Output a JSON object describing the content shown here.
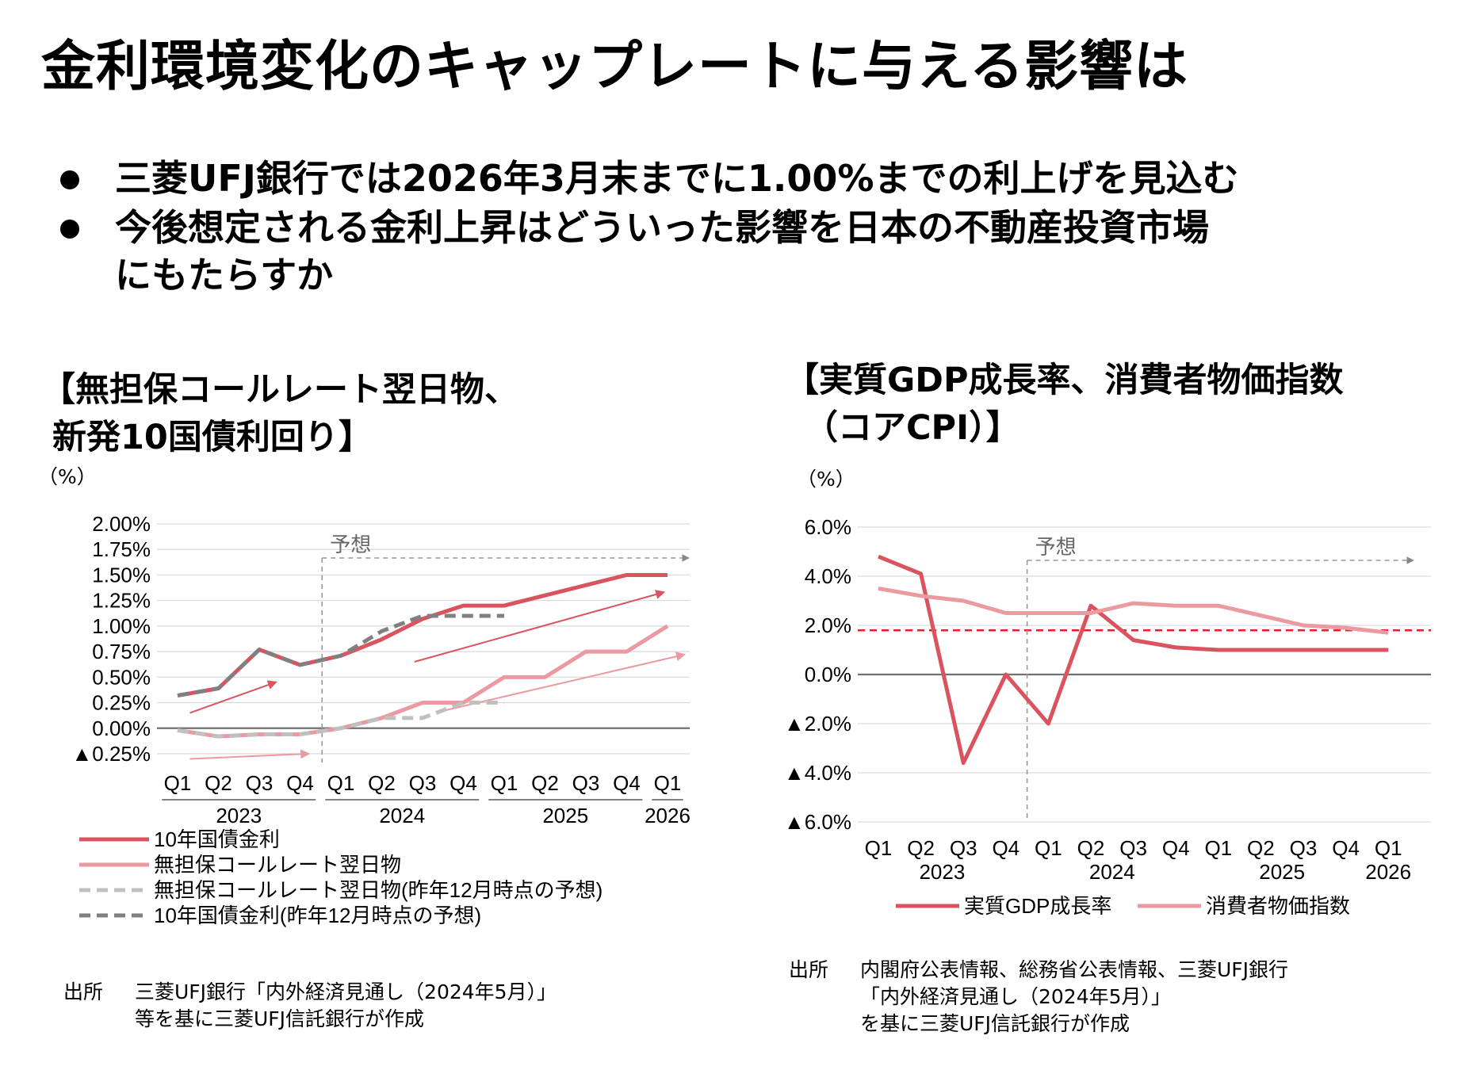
{
  "page": {
    "title": "金利環境変化のキャップレートに与える影響は",
    "bullets": [
      "三菱UFJ銀行では2026年3月末までに1.00%までの利上げを見込む",
      "今後想定される金利上昇はどういった影響を日本の不動産投資市場",
      "にもたらすか"
    ]
  },
  "left_panel": {
    "title_line1": "【無担保コールレート翌日物、",
    "title_line2": "新発10国債利回り】",
    "unit": "（%）",
    "source_label": "出所",
    "source_line1": "三菱UFJ銀行「内外経済見通し（2024年5月）」",
    "source_line2": "等を基に三菱UFJ信託銀行が作成"
  },
  "right_panel": {
    "title_line1": "【実質GDP成長率、消費者物価指数",
    "title_line2": "（コアCPI）】",
    "unit": "（%）",
    "source_label": "出所",
    "source_line1": "内閣府公表情報、総務省公表情報、三菱UFJ銀行",
    "source_line2": "「内外経済見通し（2024年5月）」",
    "source_line3": "を基に三菱UFJ信託銀行が作成"
  },
  "colors": {
    "dark_red": "#d9545e",
    "light_red": "#ea9aa0",
    "light_gray": "#c0c0c0",
    "dark_gray": "#808080",
    "dashed_red": "#e0202a",
    "axis": "#707070",
    "grid": "#d9d9d9"
  },
  "chart_data": [
    {
      "type": "line",
      "title": "無担保コールレート翌日物、新発10国債利回り",
      "ylabel": "（%）",
      "ylim": [
        -0.25,
        2.0
      ],
      "y_ticks": [
        2.0,
        1.75,
        1.5,
        1.25,
        1.0,
        0.75,
        0.5,
        0.25,
        0.0,
        -0.25
      ],
      "y_tick_labels": [
        "2.00%",
        "1.75%",
        "1.50%",
        "1.25%",
        "1.00%",
        "0.75%",
        "0.50%",
        "0.25%",
        "0.00%",
        "▲0.25%"
      ],
      "categories": [
        "Q1",
        "Q2",
        "Q3",
        "Q4",
        "Q1",
        "Q2",
        "Q3",
        "Q4",
        "Q1",
        "Q2",
        "Q3",
        "Q4",
        "Q1"
      ],
      "years": [
        {
          "label": "2023",
          "start": 0,
          "end": 3
        },
        {
          "label": "2024",
          "start": 4,
          "end": 7
        },
        {
          "label": "2025",
          "start": 8,
          "end": 11
        },
        {
          "label": "2026",
          "start": 12,
          "end": 12
        }
      ],
      "forecast_label": "予想",
      "forecast_start_index": 4,
      "series": [
        {
          "name": "10年国債金利",
          "style": "solid",
          "color": "dark_red",
          "values": [
            0.32,
            0.39,
            0.77,
            0.62,
            0.71,
            0.87,
            1.07,
            1.2,
            1.2,
            1.3,
            1.4,
            1.5,
            1.5
          ]
        },
        {
          "name": "無担保コールレート翌日物",
          "style": "solid",
          "color": "light_red",
          "values": [
            -0.02,
            -0.08,
            -0.06,
            -0.06,
            0.0,
            0.1,
            0.25,
            0.25,
            0.5,
            0.5,
            0.75,
            0.75,
            1.0
          ]
        },
        {
          "name": "無担保コールレート翌日物(昨年12月時点の予想)",
          "style": "dashed",
          "color": "light_gray",
          "values": [
            -0.02,
            -0.08,
            -0.06,
            -0.06,
            0.0,
            0.1,
            0.1,
            0.25,
            0.25,
            null,
            null,
            null,
            null
          ]
        },
        {
          "name": "10年国債金利(昨年12月時点の予想)",
          "style": "dashed",
          "color": "dark_gray",
          "values": [
            0.32,
            0.39,
            0.77,
            0.62,
            0.71,
            0.95,
            1.1,
            1.1,
            1.1,
            null,
            null,
            null,
            null
          ]
        }
      ],
      "trend_arrows": [
        {
          "color": "dark_red",
          "from": [
            0.3,
            0.15
          ],
          "to": [
            2.4,
            0.45
          ]
        },
        {
          "color": "dark_red",
          "from": [
            5.8,
            0.65
          ],
          "to": [
            11.9,
            1.33
          ]
        },
        {
          "color": "light_red",
          "from": [
            0.3,
            -0.3
          ],
          "to": [
            3.2,
            -0.25
          ]
        },
        {
          "color": "light_red",
          "from": [
            6.5,
            0.17
          ],
          "to": [
            12.4,
            0.72
          ]
        }
      ]
    },
    {
      "type": "line",
      "title": "実質GDP成長率、消費者物価指数（コアCPI）",
      "ylabel": "（%）",
      "ylim": [
        -6.0,
        6.0
      ],
      "y_ticks": [
        6,
        4,
        2,
        0,
        -2,
        -4,
        -6
      ],
      "y_tick_labels": [
        "6.0%",
        "4.0%",
        "2.0%",
        "0.0%",
        "▲2.0%",
        "▲4.0%",
        "▲6.0%"
      ],
      "categories": [
        "Q1",
        "Q2",
        "Q3",
        "Q4",
        "Q1",
        "Q2",
        "Q3",
        "Q4",
        "Q1",
        "Q2",
        "Q3",
        "Q4",
        "Q1"
      ],
      "years": [
        {
          "label": "2023",
          "start": 0,
          "end": 3
        },
        {
          "label": "2024",
          "start": 4,
          "end": 7
        },
        {
          "label": "2025",
          "start": 8,
          "end": 11
        },
        {
          "label": "2026",
          "start": 12,
          "end": 12
        }
      ],
      "forecast_label": "予想",
      "forecast_start_index": 4,
      "reference_line": 1.8,
      "series": [
        {
          "name": "実質GDP成長率",
          "style": "solid",
          "color": "dark_red",
          "values": [
            4.8,
            4.1,
            -3.6,
            0.0,
            -2.0,
            2.8,
            1.4,
            1.1,
            1.0,
            1.0,
            1.0,
            1.0,
            1.0
          ]
        },
        {
          "name": "消費者物価指数",
          "style": "solid",
          "color": "light_red",
          "values": [
            3.5,
            3.2,
            3.0,
            2.5,
            2.5,
            2.5,
            2.9,
            2.8,
            2.8,
            2.4,
            2.0,
            1.9,
            1.7
          ]
        }
      ]
    }
  ]
}
